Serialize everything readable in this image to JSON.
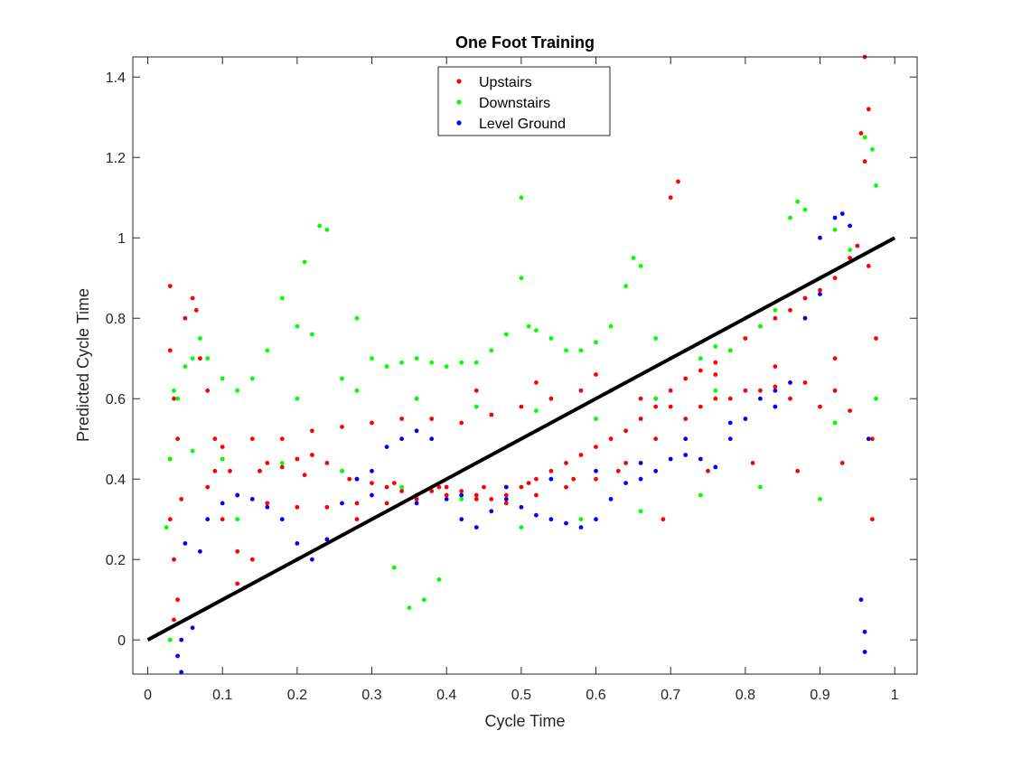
{
  "chart_data": {
    "type": "scatter",
    "title": "One Foot Training",
    "xlabel": "Cycle Time",
    "ylabel": "Predicted Cycle Time",
    "xlim": [
      -0.02,
      1.03
    ],
    "ylim": [
      -0.085,
      1.45
    ],
    "xticks": [
      0,
      0.1,
      0.2,
      0.3,
      0.4,
      0.5,
      0.6,
      0.7,
      0.8,
      0.9,
      1
    ],
    "xtick_labels": [
      "0",
      "0.1",
      "0.2",
      "0.3",
      "0.4",
      "0.5",
      "0.6",
      "0.7",
      "0.8",
      "0.9",
      "1"
    ],
    "yticks": [
      0,
      0.2,
      0.4,
      0.6,
      0.8,
      1,
      1.2,
      1.4
    ],
    "ytick_labels": [
      "0",
      "0.2",
      "0.4",
      "0.6",
      "0.8",
      "1",
      "1.2",
      "1.4"
    ],
    "grid": false,
    "legend_position": "top-center",
    "reference_line": {
      "x": [
        0,
        1
      ],
      "y": [
        0,
        1
      ],
      "color": "#000000"
    },
    "series": [
      {
        "name": "Upstairs",
        "color": "#ff0000",
        "x": [
          0.03,
          0.03,
          0.03,
          0.03,
          0.035,
          0.035,
          0.035,
          0.04,
          0.04,
          0.045,
          0.05,
          0.06,
          0.065,
          0.07,
          0.08,
          0.09,
          0.1,
          0.1,
          0.11,
          0.12,
          0.13,
          0.14,
          0.15,
          0.16,
          0.18,
          0.2,
          0.22,
          0.24,
          0.26,
          0.28,
          0.3,
          0.32,
          0.34,
          0.36,
          0.38,
          0.4,
          0.42,
          0.44,
          0.46,
          0.48,
          0.5,
          0.52,
          0.54,
          0.56,
          0.58,
          0.6,
          0.62,
          0.64,
          0.66,
          0.68,
          0.7,
          0.7,
          0.71,
          0.72,
          0.74,
          0.76,
          0.78,
          0.8,
          0.82,
          0.84,
          0.86,
          0.88,
          0.9,
          0.92,
          0.94,
          0.95,
          0.955,
          0.96,
          0.96,
          0.965,
          0.965,
          0.97,
          0.97,
          0.975,
          0.1,
          0.14,
          0.18,
          0.22,
          0.26,
          0.3,
          0.34,
          0.38,
          0.42,
          0.46,
          0.5,
          0.54,
          0.58,
          0.62,
          0.66,
          0.7,
          0.74,
          0.78,
          0.82,
          0.86,
          0.9,
          0.94,
          0.08,
          0.12,
          0.16,
          0.2,
          0.24,
          0.28,
          0.32,
          0.36,
          0.4,
          0.44,
          0.48,
          0.52,
          0.56,
          0.6,
          0.64,
          0.68,
          0.72,
          0.76,
          0.8,
          0.84,
          0.88,
          0.92,
          0.09,
          0.15,
          0.21,
          0.27,
          0.33,
          0.39,
          0.45,
          0.51,
          0.57,
          0.63,
          0.69,
          0.75,
          0.81,
          0.87,
          0.93,
          0.12,
          0.2,
          0.28,
          0.36,
          0.44,
          0.52,
          0.6,
          0.68,
          0.76,
          0.84,
          0.92
        ],
        "y": [
          0.88,
          0.72,
          0.45,
          0.3,
          0.6,
          0.2,
          0.05,
          0.5,
          0.1,
          0.35,
          0.8,
          0.85,
          0.82,
          0.7,
          0.62,
          0.5,
          0.45,
          0.3,
          0.42,
          0.14,
          0.13,
          0.2,
          0.42,
          0.44,
          0.43,
          0.45,
          0.46,
          0.44,
          0.42,
          0.4,
          0.39,
          0.38,
          0.37,
          0.36,
          0.37,
          0.38,
          0.37,
          0.36,
          0.35,
          0.36,
          0.38,
          0.4,
          0.42,
          0.44,
          0.46,
          0.48,
          0.5,
          0.52,
          0.55,
          0.58,
          1.1,
          0.62,
          1.14,
          0.65,
          0.67,
          0.69,
          0.72,
          0.75,
          0.78,
          0.8,
          0.82,
          0.85,
          0.87,
          0.9,
          0.95,
          0.98,
          1.26,
          1.45,
          1.19,
          1.32,
          0.93,
          0.5,
          0.3,
          0.75,
          0.48,
          0.5,
          0.5,
          0.52,
          0.53,
          0.54,
          0.55,
          0.55,
          0.54,
          0.56,
          0.58,
          0.6,
          0.62,
          0.62,
          0.6,
          0.58,
          0.58,
          0.6,
          0.62,
          0.6,
          0.58,
          0.57,
          0.38,
          0.36,
          0.34,
          0.33,
          0.33,
          0.34,
          0.34,
          0.35,
          0.36,
          0.35,
          0.34,
          0.36,
          0.38,
          0.4,
          0.44,
          0.5,
          0.55,
          0.6,
          0.62,
          0.63,
          0.64,
          0.62,
          0.42,
          0.42,
          0.41,
          0.4,
          0.39,
          0.38,
          0.38,
          0.39,
          0.4,
          0.42,
          0.3,
          0.42,
          0.44,
          0.42,
          0.44,
          0.22,
          0.2,
          0.3,
          0.6,
          0.62,
          0.64,
          0.66,
          0.6,
          0.66,
          0.68,
          0.7
        ]
      },
      {
        "name": "Downstairs",
        "color": "#00ff00",
        "x": [
          0.025,
          0.03,
          0.03,
          0.035,
          0.04,
          0.05,
          0.06,
          0.07,
          0.08,
          0.1,
          0.12,
          0.14,
          0.16,
          0.18,
          0.2,
          0.21,
          0.22,
          0.23,
          0.24,
          0.26,
          0.28,
          0.3,
          0.32,
          0.34,
          0.36,
          0.38,
          0.4,
          0.42,
          0.44,
          0.46,
          0.48,
          0.5,
          0.5,
          0.51,
          0.52,
          0.54,
          0.56,
          0.58,
          0.6,
          0.62,
          0.64,
          0.65,
          0.66,
          0.68,
          0.7,
          0.72,
          0.74,
          0.76,
          0.78,
          0.8,
          0.82,
          0.84,
          0.86,
          0.87,
          0.88,
          0.9,
          0.92,
          0.94,
          0.96,
          0.97,
          0.975,
          0.975,
          0.12,
          0.2,
          0.28,
          0.36,
          0.44,
          0.52,
          0.6,
          0.68,
          0.76,
          0.84,
          0.92,
          0.06,
          0.1,
          0.18,
          0.26,
          0.34,
          0.42,
          0.5,
          0.58,
          0.66,
          0.74,
          0.82,
          0.9,
          0.33,
          0.35,
          0.37,
          0.39
        ],
        "y": [
          0.28,
          0.0,
          0.45,
          0.62,
          0.6,
          0.68,
          0.7,
          0.75,
          0.7,
          0.65,
          0.62,
          0.65,
          0.72,
          0.85,
          0.78,
          0.94,
          0.76,
          1.03,
          1.02,
          0.65,
          0.8,
          0.7,
          0.68,
          0.69,
          0.7,
          0.69,
          0.68,
          0.69,
          0.69,
          0.72,
          0.76,
          0.9,
          1.1,
          0.78,
          0.77,
          0.75,
          0.72,
          0.72,
          0.74,
          0.78,
          0.88,
          0.95,
          0.93,
          0.75,
          0.7,
          0.72,
          0.7,
          0.73,
          0.72,
          0.8,
          0.78,
          0.82,
          1.05,
          1.09,
          1.07,
          0.9,
          1.02,
          0.97,
          1.25,
          1.22,
          1.13,
          0.6,
          0.3,
          0.6,
          0.62,
          0.6,
          0.58,
          0.57,
          0.55,
          0.6,
          0.62,
          0.58,
          0.54,
          0.47,
          0.45,
          0.44,
          0.42,
          0.38,
          0.35,
          0.28,
          0.3,
          0.32,
          0.36,
          0.38,
          0.35,
          0.18,
          0.08,
          0.1,
          0.15
        ]
      },
      {
        "name": "Level Ground",
        "color": "#0000ff",
        "x": [
          0.04,
          0.045,
          0.045,
          0.05,
          0.06,
          0.07,
          0.08,
          0.1,
          0.12,
          0.14,
          0.16,
          0.18,
          0.2,
          0.22,
          0.24,
          0.26,
          0.28,
          0.3,
          0.32,
          0.34,
          0.36,
          0.38,
          0.4,
          0.42,
          0.44,
          0.46,
          0.48,
          0.5,
          0.52,
          0.54,
          0.56,
          0.58,
          0.6,
          0.62,
          0.64,
          0.66,
          0.68,
          0.7,
          0.72,
          0.74,
          0.76,
          0.78,
          0.8,
          0.82,
          0.84,
          0.86,
          0.88,
          0.9,
          0.92,
          0.93,
          0.94,
          0.955,
          0.96,
          0.96,
          0.965,
          0.3,
          0.36,
          0.42,
          0.48,
          0.54,
          0.6,
          0.66,
          0.72,
          0.78,
          0.84,
          0.9
        ],
        "y": [
          -0.04,
          0.0,
          -0.08,
          0.24,
          0.03,
          0.22,
          0.3,
          0.34,
          0.36,
          0.35,
          0.33,
          0.3,
          0.24,
          0.2,
          0.25,
          0.34,
          0.4,
          0.42,
          0.48,
          0.5,
          0.52,
          0.5,
          0.35,
          0.3,
          0.28,
          0.32,
          0.35,
          0.33,
          0.31,
          0.3,
          0.29,
          0.28,
          0.3,
          0.35,
          0.39,
          0.4,
          0.42,
          0.45,
          0.46,
          0.45,
          0.43,
          0.5,
          0.55,
          0.6,
          0.62,
          0.64,
          0.8,
          1.0,
          1.05,
          1.06,
          1.03,
          0.1,
          0.02,
          -0.03,
          0.5,
          0.36,
          0.34,
          0.36,
          0.38,
          0.4,
          0.42,
          0.44,
          0.5,
          0.54,
          0.58,
          0.86
        ]
      }
    ]
  }
}
